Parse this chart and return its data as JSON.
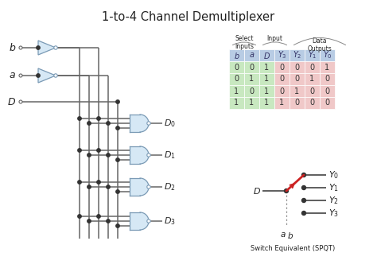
{
  "title": "1-to-4 Channel Demultiplexer",
  "bg_color": "#ffffff",
  "gate_color": "#d6e8f5",
  "gate_edge": "#7a9ab5",
  "wire_color": "#666666",
  "table_header_green": "#c8e8c0",
  "table_data_pink": "#f0c8c8",
  "table_header_blue": "#b8cce4",
  "truth_table": {
    "headers": [
      "b",
      "a",
      "D",
      "Y3",
      "Y2",
      "Y1",
      "Y0"
    ],
    "rows": [
      [
        0,
        0,
        1,
        0,
        0,
        0,
        1
      ],
      [
        0,
        1,
        1,
        0,
        0,
        1,
        0
      ],
      [
        1,
        0,
        1,
        0,
        1,
        0,
        0
      ],
      [
        1,
        1,
        1,
        1,
        0,
        0,
        0
      ]
    ]
  },
  "switch_color": "#cc2222",
  "dot_color": "#333333",
  "label_color": "#222222"
}
